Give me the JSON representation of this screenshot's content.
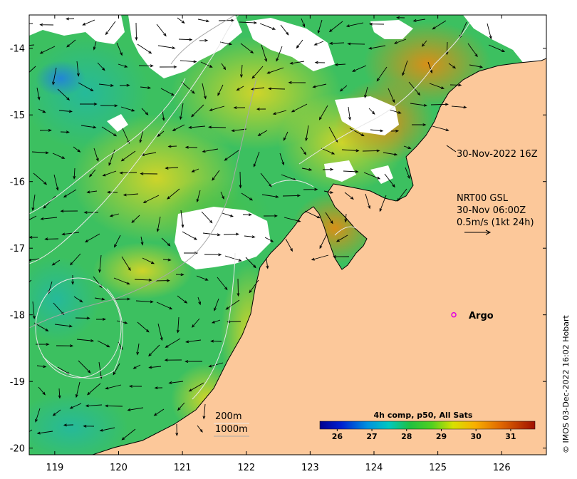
{
  "map": {
    "lon_range": [
      118.6,
      126.7
    ],
    "lat_range": [
      -20.1,
      -13.5
    ],
    "lon_ticks": [
      119,
      120,
      121,
      122,
      123,
      124,
      125,
      126
    ],
    "lat_ticks": [
      -14,
      -15,
      -16,
      -17,
      -18,
      -19,
      -20
    ],
    "lon_tick_labels": [
      "119",
      "120",
      "121",
      "122",
      "123",
      "124",
      "125",
      "126"
    ],
    "lat_tick_labels": [
      "-14",
      "-15",
      "-16",
      "-17",
      "-18",
      "-19",
      "-20"
    ]
  },
  "annotations": {
    "timestamp": "30-Nov-2022 16Z",
    "current_title": "NRT00 GSL",
    "current_time": "30-Nov 06:00Z",
    "current_scale": "0.5m/s (1kt 24h)",
    "argo_label": "Argo",
    "isobath_200": "200m",
    "isobath_1000": "1000m",
    "credit": "© IMOS 03-Dec-2022 16:02 Hobart"
  },
  "argo": {
    "lon": 125.25,
    "lat": -18.0
  },
  "colorbar": {
    "title": "4h comp, p50, All Sats",
    "range": [
      25.5,
      31.7
    ],
    "ticks": [
      26,
      27,
      28,
      29,
      30,
      31
    ],
    "tick_labels": [
      "26",
      "27",
      "28",
      "29",
      "30",
      "31"
    ]
  },
  "colors": {
    "land": "#fcc89a",
    "argo_marker": "#e000e0"
  }
}
